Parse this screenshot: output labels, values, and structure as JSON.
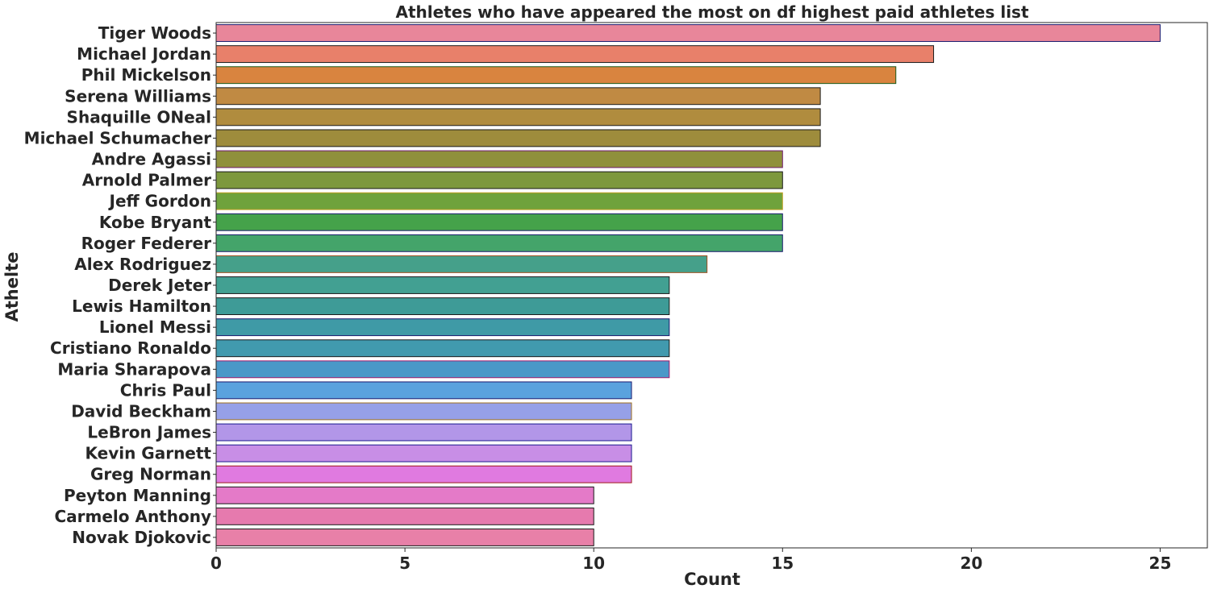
{
  "chart_data": {
    "type": "bar",
    "orientation": "horizontal",
    "title": "Athletes who have appeared the most on df highest paid athletes list",
    "xlabel": "Count",
    "ylabel": "Athelte",
    "xlim": [
      0,
      26.25
    ],
    "xticks": [
      0,
      5,
      10,
      15,
      20,
      25
    ],
    "grid": false,
    "legend": "none",
    "categories": [
      "Tiger Woods",
      "Michael Jordan",
      "Phil Mickelson",
      "Serena Williams",
      "Shaquille ONeal",
      "Michael Schumacher",
      "Andre Agassi",
      "Arnold Palmer",
      "Jeff Gordon",
      "Kobe Bryant",
      "Roger Federer",
      "Alex Rodriguez",
      "Derek Jeter",
      "Lewis Hamilton",
      "Lionel Messi",
      "Cristiano Ronaldo",
      "Maria Sharapova",
      "Chris Paul",
      "David Beckham",
      "LeBron James",
      "Kevin Garnett",
      "Greg Norman",
      "Peyton Manning",
      "Carmelo Anthony",
      "Novak Djokovic"
    ],
    "values": [
      25,
      19,
      18,
      16,
      16,
      16,
      15,
      15,
      15,
      15,
      15,
      13,
      12,
      12,
      12,
      12,
      12,
      11,
      11,
      11,
      11,
      11,
      10,
      10,
      10
    ],
    "colors": [
      "#e8869a",
      "#e8806a",
      "#d9843f",
      "#c08a43",
      "#b08c3e",
      "#9e8c3c",
      "#8f903c",
      "#7d983d",
      "#6fa23c",
      "#45a24a",
      "#44a46a",
      "#45a08a",
      "#42a092",
      "#3e9b97",
      "#3f9aa6",
      "#419aae",
      "#4a98c8",
      "#5aa2de",
      "#96a0e8",
      "#b296e8",
      "#c88ee6",
      "#e07ae0",
      "#e47ac8",
      "#e67aae",
      "#e880a8"
    ],
    "edge_colors": [
      "#1a1a6e",
      "#1a1a1a",
      "#1a5a1a",
      "#1a1a1a",
      "#1a1a1a",
      "#1a1a1a",
      "#6e1a6e",
      "#1a1a1a",
      "#c0a020",
      "#1a1a6e",
      "#1a1a6e",
      "#a05020",
      "#1a1a1a",
      "#1a1a1a",
      "#1a1a6e",
      "#1a1a1a",
      "#a01a6e",
      "#1a1a6e",
      "#a07020",
      "#1a1a8e",
      "#1a1a8e",
      "#a01a1a",
      "#1a1a1a",
      "#1a1a1a",
      "#1a1a1a"
    ]
  }
}
